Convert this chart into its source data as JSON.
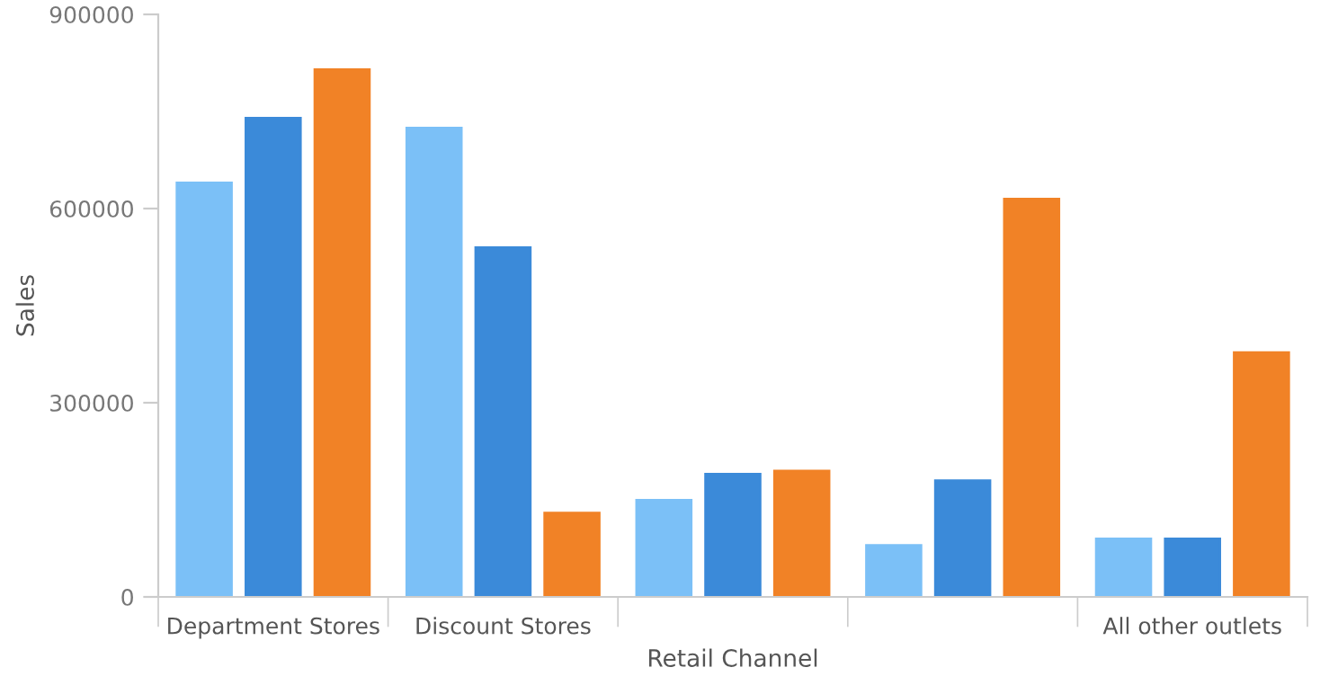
{
  "chart_data": {
    "type": "bar",
    "xlabel": "Retail Channel",
    "ylabel": "Sales",
    "categories": [
      "Department Stores",
      "Discount Stores",
      null,
      null,
      "All other outlets"
    ],
    "series": [
      {
        "color": "#7bc0f7",
        "values": [
          640000,
          725000,
          150000,
          80000,
          90000
        ]
      },
      {
        "color": "#3b8ad9",
        "values": [
          740000,
          540000,
          190000,
          180000,
          90000
        ]
      },
      {
        "color": "#f18226",
        "values": [
          815000,
          130000,
          195000,
          615000,
          378000
        ]
      }
    ],
    "ylim": [
      0,
      900000
    ],
    "yticks": [
      0,
      300000,
      600000,
      900000
    ],
    "grid": false,
    "legend": false
  }
}
